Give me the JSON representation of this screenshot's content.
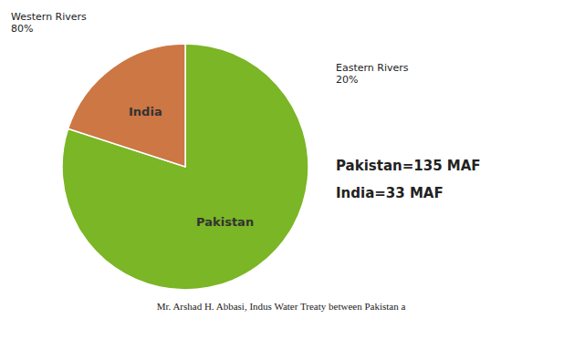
{
  "chart_data": {
    "type": "pie",
    "categories": [
      "Pakistan",
      "India"
    ],
    "values": [
      80,
      20
    ],
    "colors": [
      "#7ab625",
      "#cc7744"
    ],
    "annotations": [
      "Eastern Rivers\n20%",
      "Western Rivers\n80%",
      "Pakistan=135 MAF",
      "India=33 MAF",
      "Mr. Arshad H. Abbasi, Indus Water Treaty between Pakistan a"
    ]
  }
}
